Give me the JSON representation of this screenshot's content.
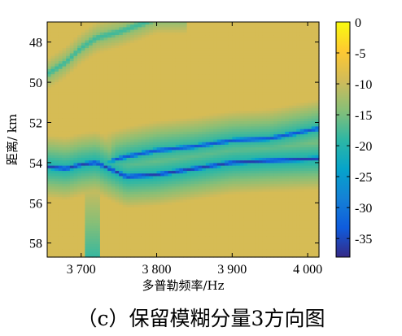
{
  "figure": {
    "caption": "（c）保留模糊分量3方向图"
  },
  "chart_data": {
    "type": "heatmap",
    "title": "",
    "xlabel": "多普勒频率/Hz",
    "ylabel": "距离/ km",
    "xlim": [
      3655,
      4015
    ],
    "ylim": [
      47,
      58.7
    ],
    "x_ticks": [
      3700,
      3800,
      3900,
      4000
    ],
    "x_tick_labels": [
      "3 700",
      "3 800",
      "3 900",
      "4 000"
    ],
    "y_ticks": [
      48,
      50,
      52,
      54,
      56,
      58
    ],
    "y_tick_labels": [
      "48",
      "50",
      "52",
      "54",
      "56",
      "58"
    ],
    "colorbar": {
      "range": [
        -38,
        0
      ],
      "ticks": [
        0,
        -5,
        -10,
        -15,
        -20,
        -25,
        -30,
        -35
      ],
      "tick_labels": [
        "0",
        "-5",
        "-10",
        "-15",
        "-20",
        "-25",
        "-30",
        "-35"
      ],
      "colormap": "parula",
      "colors": [
        "#352a87",
        "#0f5cdd",
        "#1481d6",
        "#06a4ca",
        "#2eb7a4",
        "#87bf77",
        "#d1bb59",
        "#fec832",
        "#f9fb0e"
      ]
    },
    "ridges": [
      {
        "name": "",
        "x": [
          3655,
          3680,
          3700,
          3720,
          3760,
          3800,
          3850,
          3900,
          3950,
          4015
        ],
        "y": [
          54.2,
          54.3,
          54.1,
          54.0,
          54.7,
          54.6,
          54.3,
          54.0,
          53.9,
          53.8
        ],
        "depth_db": -36
      },
      {
        "name": "",
        "x": [
          3720,
          3760,
          3800,
          3850,
          3900,
          3950,
          4015
        ],
        "y": [
          54.1,
          53.7,
          53.4,
          53.2,
          52.9,
          52.8,
          52.3
        ],
        "depth_db": -34
      },
      {
        "name": "",
        "x": [
          3655,
          3680,
          3700,
          3720,
          3750,
          3780,
          3800
        ],
        "y": [
          49.6,
          49.0,
          48.3,
          47.8,
          47.5,
          47.1,
          46.8
        ],
        "depth_db": -18
      }
    ],
    "grid": false,
    "legend": "none"
  }
}
